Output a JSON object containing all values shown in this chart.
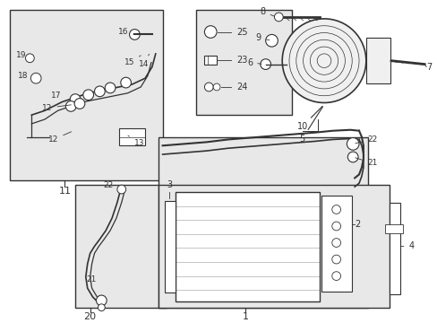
{
  "bg_color": "#ffffff",
  "diagram_bg": "#e8e8e8",
  "line_color": "#333333",
  "figsize": [
    4.89,
    3.6
  ],
  "dpi": 100
}
